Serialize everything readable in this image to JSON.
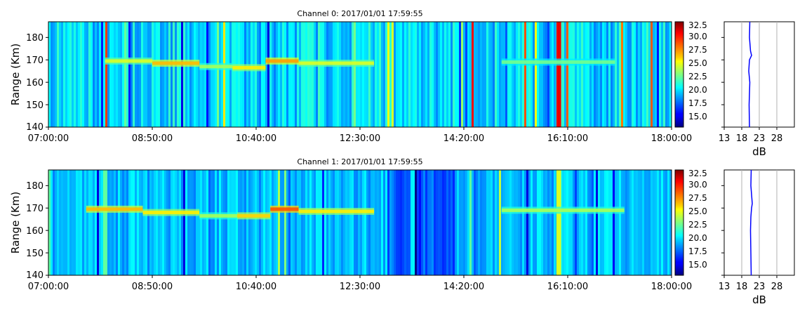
{
  "chart_data": [
    {
      "type": "heatmap",
      "title": "Channel 0: 2017/01/01 17:59:55",
      "ylabel": "Range (Km)",
      "xticks": [
        "07:00:00",
        "08:50:00",
        "10:40:00",
        "12:30:00",
        "14:20:00",
        "16:10:00",
        "18:00:00"
      ],
      "xlim": [
        "07:00:00",
        "18:00:00"
      ],
      "yticks": [
        140,
        150,
        160,
        170,
        180
      ],
      "ylim": [
        140,
        187
      ],
      "colorbar": {
        "colormap": "jet",
        "range": [
          13.5,
          33
        ],
        "ticks": [
          "15.0",
          "17.5",
          "20.0",
          "22.5",
          "25.0",
          "27.5",
          "30.0",
          "32.5"
        ]
      },
      "echo_layer": {
        "range_km": 169,
        "segments": [
          {
            "start": "08:00",
            "end": "08:50",
            "range_km": 169.5,
            "intensity": 25
          },
          {
            "start": "08:50",
            "end": "09:40",
            "range_km": 168.5,
            "intensity": 27
          },
          {
            "start": "09:40",
            "end": "10:15",
            "range_km": 167,
            "intensity": 24
          },
          {
            "start": "10:15",
            "end": "10:50",
            "range_km": 166.5,
            "intensity": 26
          },
          {
            "start": "10:50",
            "end": "11:25",
            "range_km": 169.5,
            "intensity": 27.5
          },
          {
            "start": "11:25",
            "end": "12:45",
            "range_km": 168.5,
            "intensity": 25
          },
          {
            "start": "15:00",
            "end": "17:00",
            "range_km": 169,
            "intensity": 23
          }
        ],
        "strong_band": {
          "start": "15:58",
          "end": "16:03",
          "intensity": 31
        }
      },
      "profile": {
        "xlabel": "dB",
        "xticks": [
          13,
          18,
          23,
          28
        ],
        "xlim": [
          13,
          33
        ],
        "ylim": [
          140,
          187
        ],
        "range_km": [
          140,
          150,
          160,
          165,
          170,
          172,
          174,
          180,
          187
        ],
        "db": [
          20.2,
          20.1,
          20.3,
          20.0,
          20.2,
          20.8,
          20.5,
          20.2,
          20.3
        ]
      }
    },
    {
      "type": "heatmap",
      "title": "Channel 1: 2017/01/01 17:59:55",
      "ylabel": "Range (Km)",
      "xticks": [
        "07:00:00",
        "08:50:00",
        "10:40:00",
        "12:30:00",
        "14:20:00",
        "16:10:00",
        "18:00:00"
      ],
      "xlim": [
        "07:00:00",
        "18:00:00"
      ],
      "yticks": [
        140,
        150,
        160,
        170,
        180
      ],
      "ylim": [
        140,
        187
      ],
      "colorbar": {
        "colormap": "jet",
        "range": [
          13.5,
          33
        ],
        "ticks": [
          "15.0",
          "17.5",
          "20.0",
          "22.5",
          "25.0",
          "27.5",
          "30.0",
          "32.5"
        ]
      },
      "echo_layer": {
        "range_km": 169,
        "segments": [
          {
            "start": "07:40",
            "end": "08:40",
            "range_km": 169.5,
            "intensity": 27
          },
          {
            "start": "08:40",
            "end": "09:40",
            "range_km": 168,
            "intensity": 26
          },
          {
            "start": "09:40",
            "end": "10:20",
            "range_km": 166.5,
            "intensity": 24
          },
          {
            "start": "10:20",
            "end": "10:55",
            "range_km": 166.5,
            "intensity": 26.5
          },
          {
            "start": "10:55",
            "end": "11:25",
            "range_km": 169.5,
            "intensity": 29
          },
          {
            "start": "11:25",
            "end": "12:45",
            "range_km": 168.5,
            "intensity": 26
          },
          {
            "start": "15:00",
            "end": "17:10",
            "range_km": 169,
            "intensity": 24
          }
        ],
        "strong_band": {
          "start": "15:58",
          "end": "16:03",
          "intensity": 25
        }
      },
      "profile": {
        "xlabel": "dB",
        "xticks": [
          13,
          18,
          23,
          28
        ],
        "xlim": [
          13,
          33
        ],
        "ylim": [
          140,
          187
        ],
        "range_km": [
          140,
          150,
          160,
          166,
          170,
          172,
          176,
          180,
          187
        ],
        "db": [
          20.7,
          20.6,
          20.5,
          20.6,
          20.8,
          21.0,
          20.8,
          20.6,
          20.7
        ]
      }
    }
  ]
}
